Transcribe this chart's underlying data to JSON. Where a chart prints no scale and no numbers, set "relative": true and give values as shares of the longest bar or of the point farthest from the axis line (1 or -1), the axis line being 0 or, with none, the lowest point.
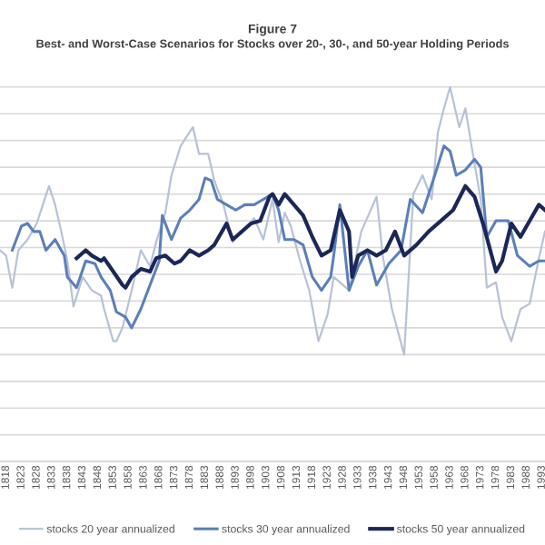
{
  "chart_data": {
    "type": "line",
    "title": "Figure 7",
    "subtitle": "Best- and Worst-Case Scenarios for Stocks over 20-, 30-, and 50-year Holding Periods",
    "relative": true,
    "grid": "y",
    "legend": "bottom",
    "marker": "none",
    "line_style": "solid",
    "xlim": [
      1816,
      1994
    ],
    "xticks": [
      1818,
      1823,
      1828,
      1833,
      1838,
      1843,
      1848,
      1853,
      1858,
      1863,
      1868,
      1873,
      1878,
      1883,
      1888,
      1893,
      1898,
      1903,
      1908,
      1913,
      1918,
      1923,
      1928,
      1933,
      1938,
      1943,
      1948,
      1953,
      1958,
      1963,
      1968,
      1973,
      1978,
      1983,
      1988,
      1993
    ],
    "series": [
      {
        "name": "stocks 20 year annualized",
        "color": "#b8c2d6",
        "x": [
          1816,
          1818,
          1820,
          1822,
          1825,
          1828,
          1830,
          1832,
          1834,
          1836,
          1838,
          1840,
          1843,
          1846,
          1849,
          1850,
          1853,
          1854,
          1856,
          1859,
          1862,
          1865,
          1867,
          1870,
          1872,
          1875,
          1879,
          1881,
          1884,
          1886,
          1889,
          1892,
          1895,
          1899,
          1902,
          1905,
          1907,
          1909,
          1911,
          1914,
          1917,
          1920,
          1923,
          1925,
          1930,
          1934,
          1939,
          1941,
          1944,
          1948,
          1951,
          1954,
          1957,
          1959,
          1961,
          1963,
          1966,
          1968,
          1970,
          1973,
          1975,
          1978,
          1980,
          1983,
          1986,
          1989,
          1992,
          1994
        ],
        "values": [
          0.39,
          0.37,
          0.25,
          0.39,
          0.43,
          0.49,
          0.56,
          0.63,
          0.56,
          0.46,
          0.35,
          0.18,
          0.29,
          0.24,
          0.22,
          0.17,
          0.05,
          0.05,
          0.1,
          0.24,
          0.39,
          0.33,
          0.42,
          0.53,
          0.67,
          0.78,
          0.85,
          0.75,
          0.75,
          0.65,
          0.56,
          0.42,
          0.46,
          0.51,
          0.43,
          0.58,
          0.42,
          0.53,
          0.48,
          0.35,
          0.24,
          0.05,
          0.15,
          0.29,
          0.24,
          0.46,
          0.59,
          0.37,
          0.17,
          0.0,
          0.6,
          0.67,
          0.58,
          0.83,
          0.92,
          1.0,
          0.85,
          0.92,
          0.78,
          0.58,
          0.25,
          0.27,
          0.14,
          0.05,
          0.17,
          0.19,
          0.36,
          0.46
        ]
      },
      {
        "name": "stocks 30 year annualized",
        "color": "#5b7fb9",
        "x": [
          1820,
          1823,
          1825,
          1827,
          1829,
          1831,
          1834,
          1837,
          1838,
          1841,
          1844,
          1847,
          1849,
          1852,
          1854,
          1857,
          1859,
          1862,
          1865,
          1868,
          1869,
          1872,
          1875,
          1878,
          1881,
          1883,
          1885,
          1887,
          1890,
          1893,
          1896,
          1899,
          1902,
          1905,
          1907,
          1909,
          1912,
          1915,
          1918,
          1921,
          1924,
          1925,
          1927,
          1930,
          1933,
          1936,
          1939,
          1943,
          1947,
          1950,
          1954,
          1958,
          1961,
          1963,
          1965,
          1968,
          1971,
          1973,
          1975,
          1978,
          1982,
          1985,
          1989,
          1992,
          1994
        ],
        "values": [
          0.39,
          0.48,
          0.49,
          0.46,
          0.46,
          0.39,
          0.43,
          0.37,
          0.29,
          0.25,
          0.35,
          0.34,
          0.29,
          0.24,
          0.16,
          0.14,
          0.1,
          0.17,
          0.26,
          0.35,
          0.52,
          0.43,
          0.51,
          0.54,
          0.58,
          0.66,
          0.65,
          0.58,
          0.56,
          0.54,
          0.56,
          0.56,
          0.58,
          0.6,
          0.54,
          0.43,
          0.43,
          0.41,
          0.29,
          0.24,
          0.29,
          0.37,
          0.56,
          0.24,
          0.33,
          0.39,
          0.26,
          0.34,
          0.39,
          0.58,
          0.53,
          0.67,
          0.78,
          0.76,
          0.67,
          0.69,
          0.73,
          0.7,
          0.44,
          0.5,
          0.5,
          0.37,
          0.33,
          0.35,
          0.35
        ]
      },
      {
        "name": "stocks 50 year annualized",
        "color": "#1c2758",
        "x": [
          1841,
          1844,
          1846,
          1849,
          1850,
          1853,
          1856,
          1857,
          1859,
          1862,
          1865,
          1867,
          1870,
          1873,
          1875,
          1878,
          1881,
          1884,
          1886,
          1890,
          1892,
          1895,
          1898,
          1901,
          1904,
          1905,
          1907,
          1909,
          1912,
          1915,
          1918,
          1921,
          1924,
          1927,
          1930,
          1931,
          1933,
          1936,
          1939,
          1942,
          1945,
          1948,
          1952,
          1956,
          1960,
          1964,
          1968,
          1971,
          1974,
          1978,
          1980,
          1983,
          1986,
          1989,
          1992,
          1994
        ],
        "values": [
          0.36,
          0.39,
          0.37,
          0.35,
          0.36,
          0.31,
          0.26,
          0.25,
          0.29,
          0.32,
          0.31,
          0.36,
          0.37,
          0.34,
          0.35,
          0.39,
          0.37,
          0.39,
          0.41,
          0.49,
          0.43,
          0.46,
          0.49,
          0.5,
          0.59,
          0.6,
          0.56,
          0.6,
          0.56,
          0.52,
          0.44,
          0.37,
          0.39,
          0.54,
          0.46,
          0.29,
          0.37,
          0.39,
          0.37,
          0.39,
          0.46,
          0.37,
          0.41,
          0.46,
          0.5,
          0.54,
          0.63,
          0.59,
          0.48,
          0.31,
          0.35,
          0.49,
          0.44,
          0.5,
          0.56,
          0.54
        ]
      }
    ]
  }
}
